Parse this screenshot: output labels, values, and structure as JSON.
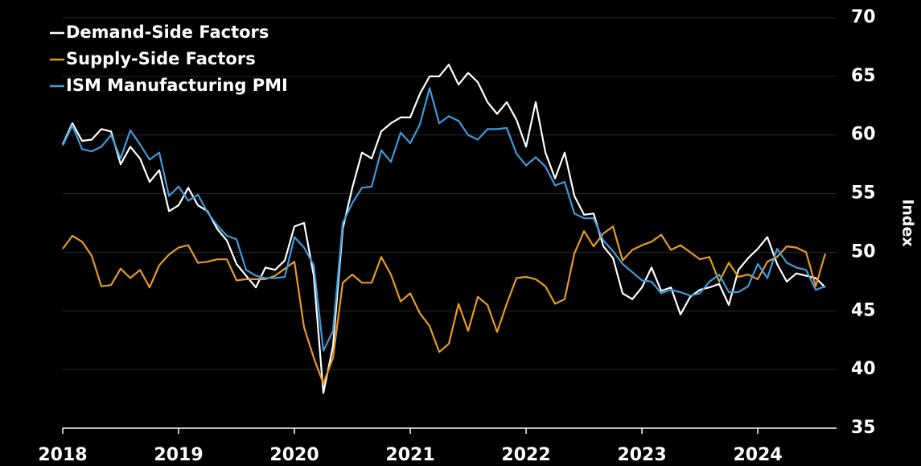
{
  "chart_data": {
    "type": "line",
    "ylabel": "Index",
    "x": [
      2018,
      2018.083,
      2018.167,
      2018.25,
      2018.333,
      2018.417,
      2018.5,
      2018.583,
      2018.667,
      2018.75,
      2018.833,
      2018.917,
      2019,
      2019.083,
      2019.167,
      2019.25,
      2019.333,
      2019.417,
      2019.5,
      2019.583,
      2019.667,
      2019.75,
      2019.833,
      2019.917,
      2020,
      2020.083,
      2020.167,
      2020.25,
      2020.333,
      2020.417,
      2020.5,
      2020.583,
      2020.667,
      2020.75,
      2020.833,
      2020.917,
      2021,
      2021.083,
      2021.167,
      2021.25,
      2021.333,
      2021.417,
      2021.5,
      2021.583,
      2021.667,
      2021.75,
      2021.833,
      2021.917,
      2022,
      2022.083,
      2022.167,
      2022.25,
      2022.333,
      2022.417,
      2022.5,
      2022.583,
      2022.667,
      2022.75,
      2022.833,
      2022.917,
      2023,
      2023.083,
      2023.167,
      2023.25,
      2023.333,
      2023.417,
      2023.5,
      2023.583,
      2023.667,
      2023.75,
      2023.833,
      2023.917,
      2024,
      2024.083,
      2024.167,
      2024.25,
      2024.333,
      2024.417,
      2024.5,
      2024.583
    ],
    "series": [
      {
        "name": "Demand-Side Factors",
        "color": "#ffffff",
        "values": [
          59.2,
          61,
          59.5,
          59.6,
          60.5,
          60.3,
          57.5,
          59,
          58,
          56,
          57,
          53.5,
          54,
          55.5,
          54,
          53.5,
          52,
          51,
          49,
          48,
          47,
          48.7,
          48.5,
          49.3,
          52.2,
          52.5,
          48,
          38,
          42,
          52,
          55.5,
          58.5,
          58,
          60.3,
          61,
          61.5,
          61.5,
          63.5,
          65,
          65,
          66,
          64.3,
          65.3,
          64.5,
          62.8,
          61.8,
          62.8,
          61.3,
          59,
          62.8,
          58.5,
          56.3,
          58.5,
          54.8,
          53.2,
          53.3,
          50.5,
          49.5,
          46.5,
          46,
          47,
          48.7,
          46.7,
          47,
          44.7,
          46.2,
          46.8,
          47,
          47.3,
          45.5,
          48.5,
          49.5,
          50.3,
          51.3,
          49,
          47.5,
          48.2,
          48,
          47.8,
          47
        ]
      },
      {
        "name": "Supply-Side Factors",
        "color": "#e69b25",
        "values": [
          50.3,
          51.4,
          50.9,
          49.7,
          47.1,
          47.2,
          48.6,
          47.8,
          48.5,
          47,
          48.9,
          49.8,
          50.4,
          50.6,
          49.1,
          49.2,
          49.4,
          49.4,
          47.6,
          47.7,
          47.7,
          47.7,
          48,
          48.6,
          49.2,
          43.6,
          41,
          38.8,
          41,
          47.4,
          48.1,
          47.4,
          47.4,
          49.6,
          48.1,
          45.8,
          46.5,
          44.8,
          43.7,
          41.5,
          42.2,
          45.6,
          43.3,
          46.2,
          45.5,
          43.2,
          45.6,
          47.8,
          47.9,
          47.7,
          47.1,
          45.6,
          46,
          49.9,
          51.8,
          50.5,
          51.6,
          52.2,
          49.3,
          50.2,
          50.6,
          50.9,
          51.5,
          50.2,
          50.6,
          50,
          49.4,
          49.6,
          47.5,
          49.1,
          47.9,
          48.1,
          47.7,
          49.2,
          49.6,
          50.5,
          50.4,
          50,
          47.1,
          49.9
        ]
      },
      {
        "name": "ISM Manufacturing PMI",
        "color": "#3e9bdc",
        "values": [
          59.1,
          60.8,
          58.8,
          58.6,
          59,
          60,
          58,
          60.4,
          59.2,
          57.9,
          58.5,
          54.8,
          55.6,
          54.4,
          54.9,
          53.4,
          52.3,
          51.4,
          51.1,
          48.5,
          48,
          47.8,
          47.8,
          47.9,
          51.3,
          50.4,
          48.9,
          41.6,
          43.3,
          52.5,
          54.2,
          55.5,
          55.6,
          58.7,
          57.7,
          60.2,
          59.3,
          60.9,
          64,
          61,
          61.6,
          61.2,
          60,
          59.6,
          60.5,
          60.5,
          60.6,
          58.4,
          57.4,
          58.1,
          57.3,
          55.7,
          56,
          53.3,
          52.9,
          52.9,
          51,
          50.1,
          49,
          48.3,
          47.6,
          47.5,
          46.5,
          46.8,
          46.6,
          46.3,
          46.5,
          47.5,
          48.1,
          46.6,
          46.6,
          47.1,
          49,
          47.8,
          50.3,
          49.1,
          48.7,
          48.5,
          46.8,
          47.1
        ]
      }
    ],
    "xlim": [
      2018,
      2024.68
    ],
    "xticks": [
      2018,
      2019,
      2020,
      2021,
      2022,
      2023,
      2024
    ],
    "ylim": [
      35,
      70
    ],
    "yticks": [
      35,
      40,
      45,
      50,
      55,
      60,
      65,
      70
    ],
    "grid": true,
    "legend": "upper left"
  }
}
